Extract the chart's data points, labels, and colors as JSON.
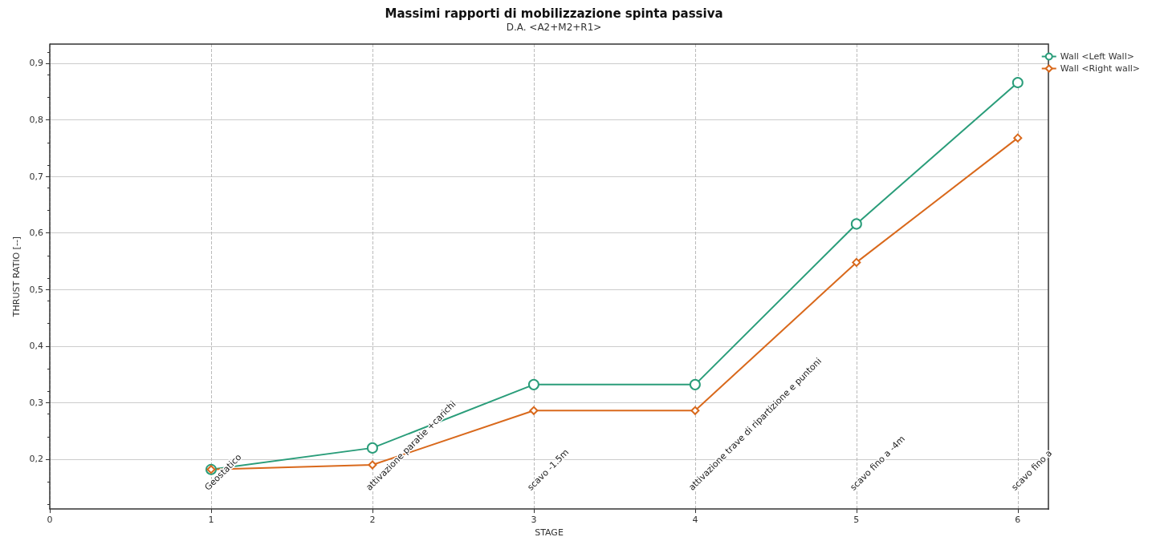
{
  "chart_data": {
    "type": "line",
    "title": "Massimi rapporti di mobilizzazione spinta passiva",
    "subtitle": "D.A. <A2+M2+R1>",
    "xlabel": "STAGE",
    "ylabel": "THRUST RATIO [--]",
    "x": [
      1,
      2,
      3,
      4,
      5,
      6
    ],
    "series": [
      {
        "name": "Wall <Left Wall>",
        "color": "#2a9d7a",
        "marker": "circle",
        "values": [
          0.182,
          0.22,
          0.332,
          0.332,
          0.616,
          0.866
        ]
      },
      {
        "name": "Wall <Right wall>",
        "color": "#d9691c",
        "marker": "diamond",
        "values": [
          0.182,
          0.19,
          0.286,
          0.286,
          0.548,
          0.768
        ]
      }
    ],
    "xlim": [
      0,
      6.19
    ],
    "xticks": [
      0,
      1,
      2,
      3,
      4,
      5,
      6
    ],
    "ylim": [
      0.112,
      0.934
    ],
    "yticks": [
      {
        "value": 0.2,
        "label": "0,2"
      },
      {
        "value": 0.3,
        "label": "0,3"
      },
      {
        "value": 0.4,
        "label": "0,4"
      },
      {
        "value": 0.5,
        "label": "0,5"
      },
      {
        "value": 0.6,
        "label": "0,6"
      },
      {
        "value": 0.7,
        "label": "0,7"
      },
      {
        "value": 0.8,
        "label": "0,8"
      },
      {
        "value": 0.9,
        "label": "0,9"
      }
    ],
    "annotations": [
      "Geostatico",
      "attivazione paratie +carichi",
      "scavo -1.5m",
      "attivazione trave di ripartizione e puntoni",
      "scavo fino a -4m",
      "scavo fino a"
    ],
    "grid": true,
    "legend": "top right",
    "line_style": "solid"
  }
}
